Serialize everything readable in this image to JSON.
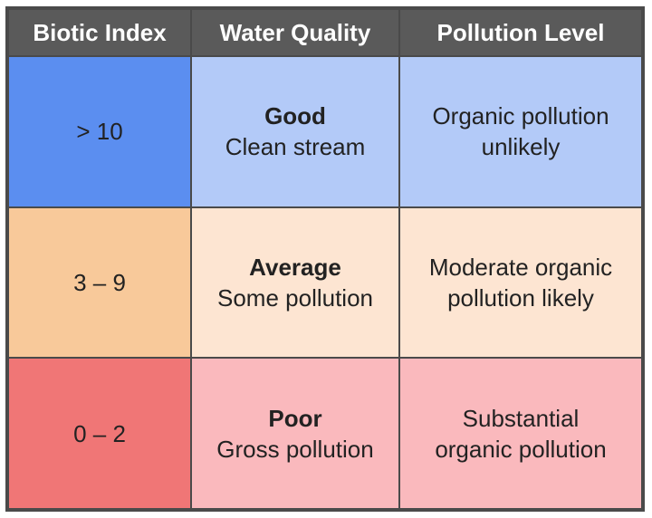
{
  "headers": {
    "index": "Biotic Index",
    "quality": "Water Quality",
    "pollution": "Pollution Level"
  },
  "rows": [
    {
      "index": "> 10",
      "quality_name": "Good",
      "quality_desc": "Clean stream",
      "pollution_line1": "Organic pollution",
      "pollution_line2": "unlikely",
      "color_index": "#5b8ef0",
      "color_cells": "#b3caf8"
    },
    {
      "index": "3 – 9",
      "quality_name": "Average",
      "quality_desc": "Some pollution",
      "pollution_line1": "Moderate organic",
      "pollution_line2": "pollution likely",
      "color_index": "#f8c99a",
      "color_cells": "#fde5d2"
    },
    {
      "index": "0 – 2",
      "quality_name": "Poor",
      "quality_desc": "Gross pollution",
      "pollution_line1": "Substantial",
      "pollution_line2": "organic pollution",
      "color_index": "#f07676",
      "color_cells": "#fab9bd"
    }
  ]
}
